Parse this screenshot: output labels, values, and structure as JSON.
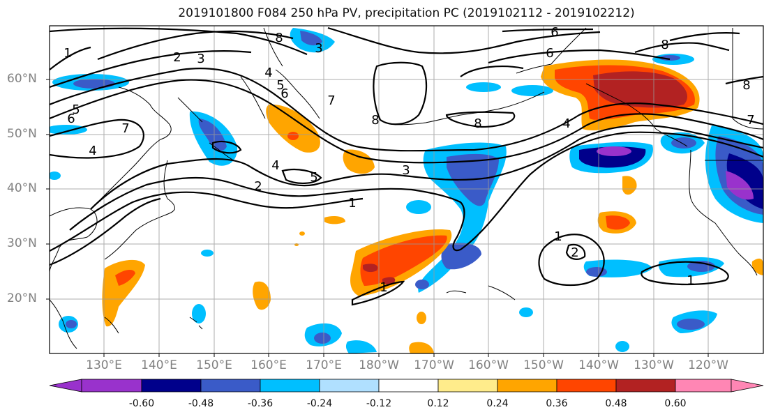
{
  "title": "2019101800 F084 250 hPa PV, precipitation PC (2019102112 - 2019102212)",
  "lat_labels": [
    "60°N",
    "50°N",
    "40°N",
    "30°N",
    "20°N"
  ],
  "lon_labels": [
    "130°E",
    "140°E",
    "150°E",
    "160°E",
    "170°E",
    "180°W",
    "170°W",
    "160°W",
    "150°W",
    "140°W",
    "130°W",
    "120°W"
  ],
  "colorbar": {
    "colors": [
      "#9932cc",
      "#00008b",
      "#3a5bc8",
      "#00bfff",
      "#b0e0ff",
      "#ffffff",
      "#ffec8b",
      "#ffa500",
      "#ff4500",
      "#b22222",
      "#ff86b4"
    ],
    "tick_labels": [
      "-0.60",
      "-0.48",
      "-0.36",
      "-0.24",
      "-0.12",
      "0.12",
      "0.24",
      "0.36",
      "0.48",
      "0.60"
    ]
  },
  "contour_labels": [
    "1",
    "2",
    "3",
    "4",
    "5",
    "6",
    "7",
    "8",
    "4",
    "5",
    "6",
    "1",
    "2",
    "3",
    "4",
    "5",
    "7",
    "8",
    "8",
    "3",
    "4",
    "6",
    "6",
    "7",
    "8",
    "8",
    "1",
    "2",
    "1",
    "1"
  ]
}
